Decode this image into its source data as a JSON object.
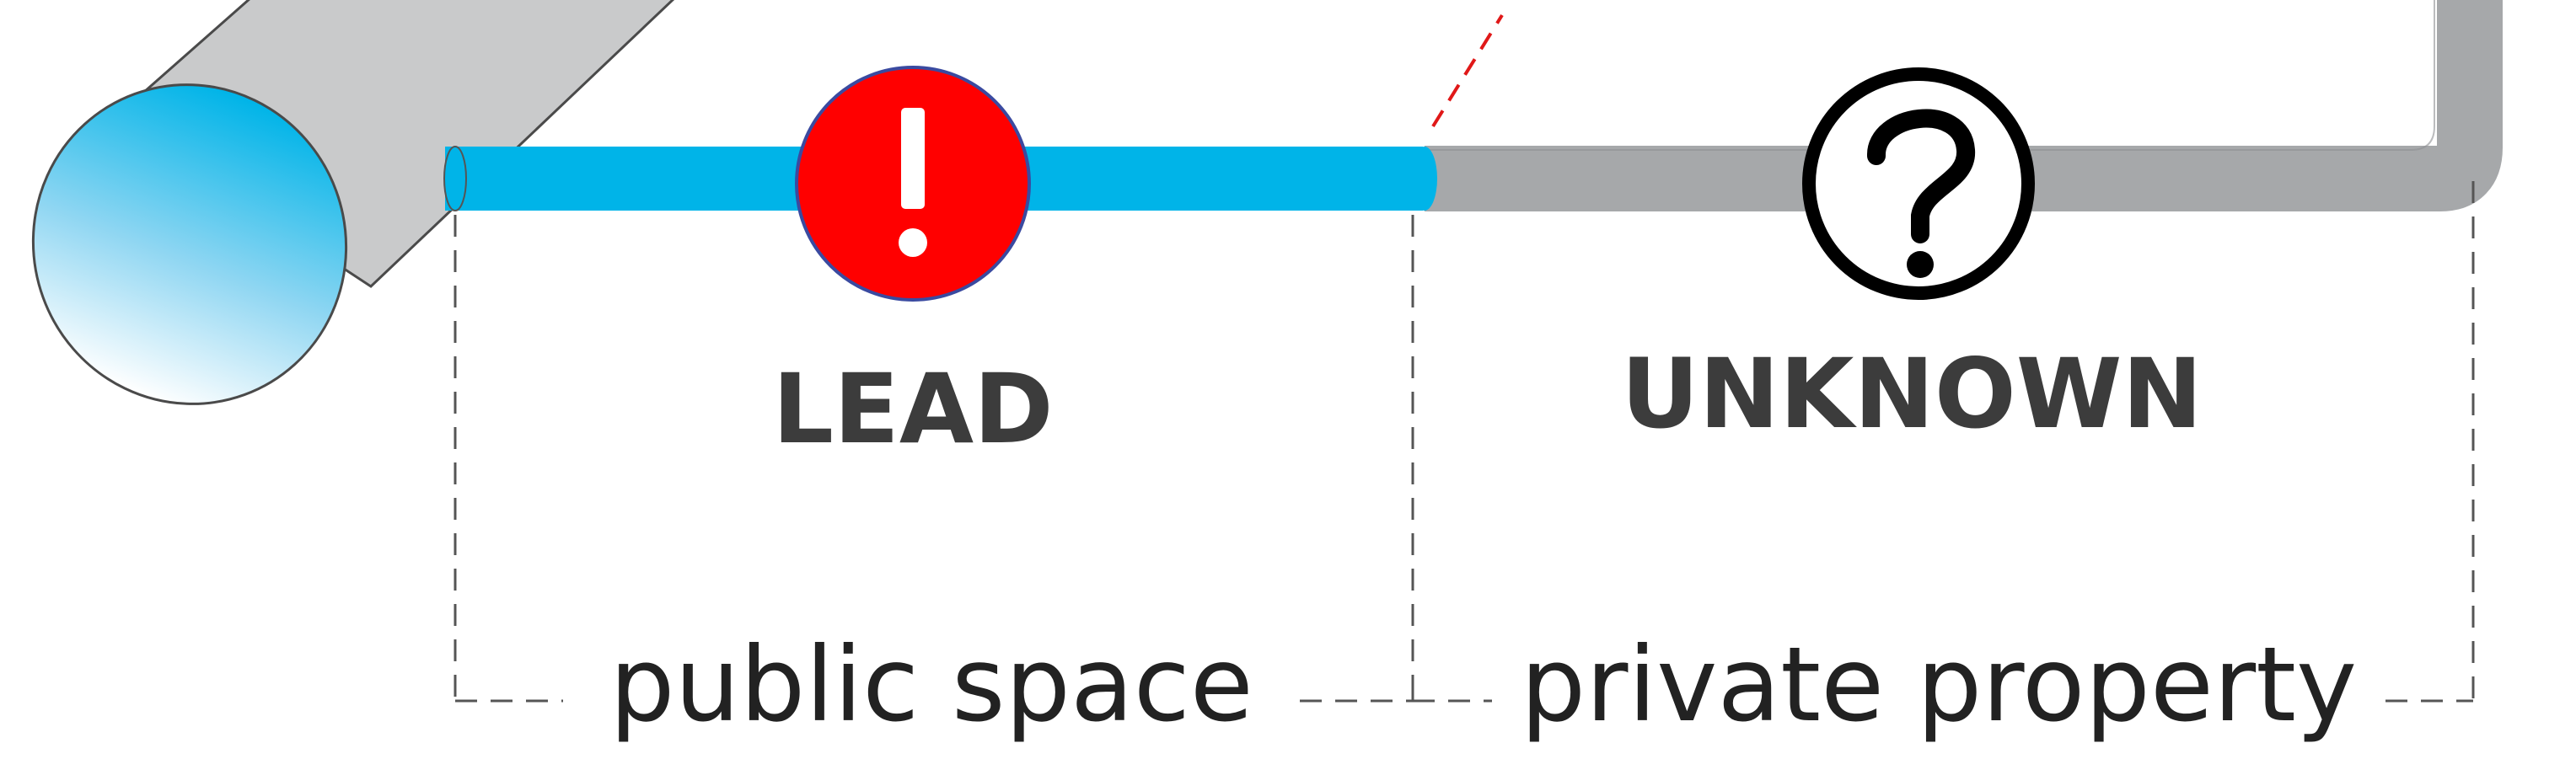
{
  "segments": {
    "public": {
      "status_label": "LEAD",
      "status_icon": "exclamation-icon",
      "status_symbol": "!",
      "area_label": "public space",
      "pipe_color": "#00b4e8",
      "badge_color": "#ff0000"
    },
    "private": {
      "status_label": "UNKNOWN",
      "status_icon": "question-icon",
      "status_symbol": "?",
      "area_label": "private property",
      "pipe_color": "#a6a8aa",
      "badge_color": "#ffffff"
    }
  },
  "colors": {
    "main_pipe": "#c9cacb",
    "main_pipe_opening": "#00b4e8",
    "boundary_line": "#e01818",
    "bracket_line": "#555555"
  }
}
